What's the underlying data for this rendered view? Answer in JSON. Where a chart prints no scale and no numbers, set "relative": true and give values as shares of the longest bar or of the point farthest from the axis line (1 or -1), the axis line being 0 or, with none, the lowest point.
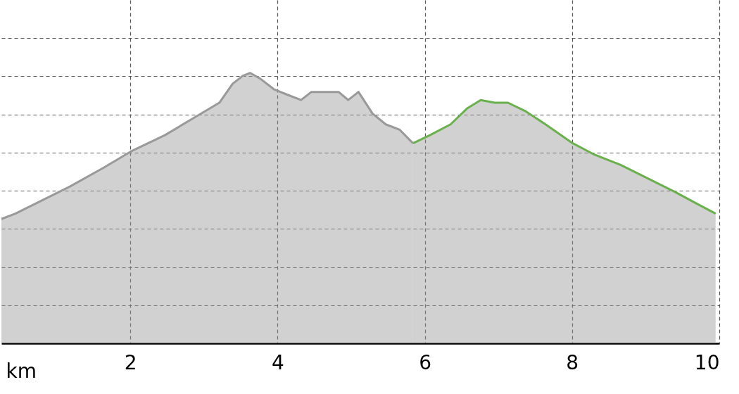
{
  "chart_data": {
    "type": "area",
    "relative": true,
    "xlabel": "km",
    "xlim": [
      0.25,
      10
    ],
    "xticks": [
      2,
      4,
      6,
      8,
      10
    ],
    "grid": true,
    "series": [
      {
        "color": "#999999",
        "x": [
          0.25,
          0.44,
          0.81,
          1.18,
          1.64,
          2.01,
          2.47,
          2.84,
          3.21,
          3.39,
          3.53,
          3.63,
          3.76,
          3.95,
          4.13,
          4.32,
          4.46,
          4.59,
          4.83,
          4.96,
          5.1,
          5.29,
          5.47,
          5.66,
          5.84
        ],
        "values": [
          0.46,
          0.48,
          0.53,
          0.58,
          0.65,
          0.71,
          0.77,
          0.83,
          0.89,
          0.96,
          0.99,
          1,
          0.98,
          0.94,
          0.92,
          0.9,
          0.93,
          0.93,
          0.93,
          0.9,
          0.93,
          0.85,
          0.81,
          0.79,
          0.74
        ]
      },
      {
        "color": "#6ab04c",
        "x": [
          5.84,
          6.07,
          6.35,
          6.58,
          6.76,
          6.95,
          7.13,
          7.36,
          7.64,
          8.01,
          8.29,
          8.66,
          9.03,
          9.4,
          9.67,
          9.95
        ],
        "values": [
          0.74,
          0.77,
          0.81,
          0.87,
          0.9,
          0.89,
          0.89,
          0.86,
          0.81,
          0.74,
          0.7,
          0.66,
          0.61,
          0.56,
          0.52,
          0.48
        ]
      }
    ]
  }
}
